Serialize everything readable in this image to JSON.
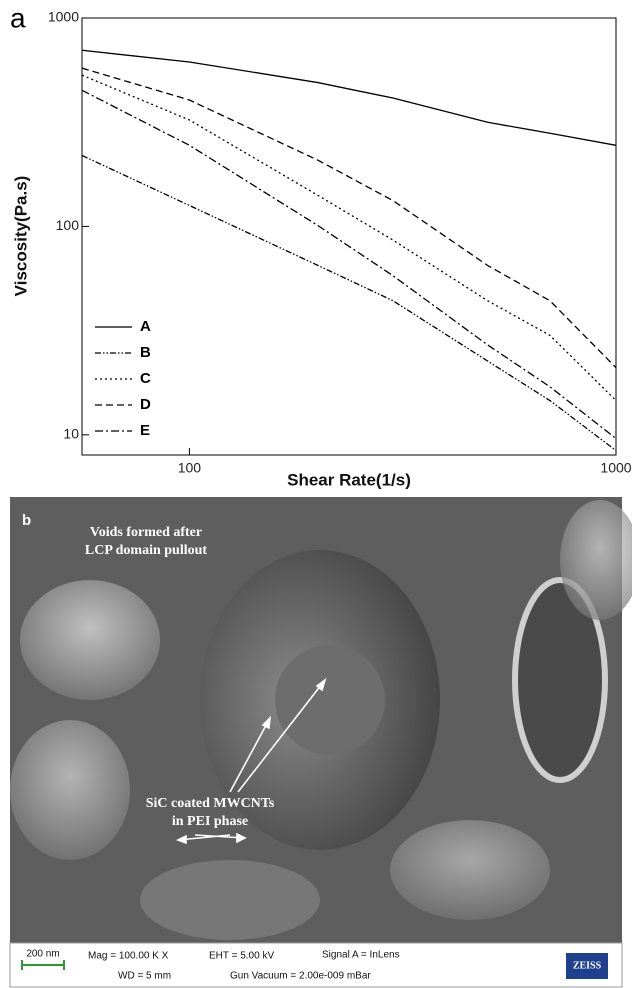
{
  "chart_data": {
    "type": "line",
    "panel": "a",
    "x_label": "Shear Rate(1/s)",
    "y_label": "Viscosity(Pa.s)",
    "xscale": "log",
    "yscale": "log",
    "xlim": [
      56,
      1000
    ],
    "ylim": [
      8,
      1000
    ],
    "xticks": [
      100,
      1000
    ],
    "yticks": [
      10,
      100,
      1000
    ],
    "legend": "lower left",
    "x": [
      56,
      100,
      200,
      300,
      500,
      700,
      1000
    ],
    "series": [
      {
        "name": "A",
        "color": "#000000",
        "dash": "none",
        "values": [
          700,
          615,
          490,
          413,
          316,
          280,
          245
        ]
      },
      {
        "name": "B",
        "color": "#000000",
        "dash": "6,2,1.5,2,1.5,2",
        "values": [
          219,
          126,
          65,
          44,
          22.6,
          14.6,
          8.4
        ]
      },
      {
        "name": "C",
        "color": "#000000",
        "dash": "2,3",
        "values": [
          532,
          324,
          141,
          86,
          44,
          30,
          14.6
        ]
      },
      {
        "name": "D",
        "color": "#000000",
        "dash": "7,4",
        "values": [
          575,
          404,
          208,
          133,
          65,
          44,
          21
        ]
      },
      {
        "name": "E",
        "color": "#000000",
        "dash": "8,3,2,3",
        "values": [
          450,
          245,
          101,
          58,
          27,
          17,
          9.6
        ]
      }
    ]
  },
  "micrograph": {
    "panel": "b",
    "annotation_1": [
      "Voids formed after",
      "LCP domain pullout"
    ],
    "annotation_2": [
      "SiC coated MWCNTs",
      "in PEI phase"
    ],
    "info_bar": {
      "scale": "200 nm",
      "mag": "Mag = 100.00 K X",
      "eht": "EHT = 5.00 kV",
      "signal": "Signal A = InLens",
      "wd": "WD =   5 mm",
      "vacuum": "Gun Vacuum = 2.00e-009 mBar",
      "logo": "ZEISS"
    }
  }
}
